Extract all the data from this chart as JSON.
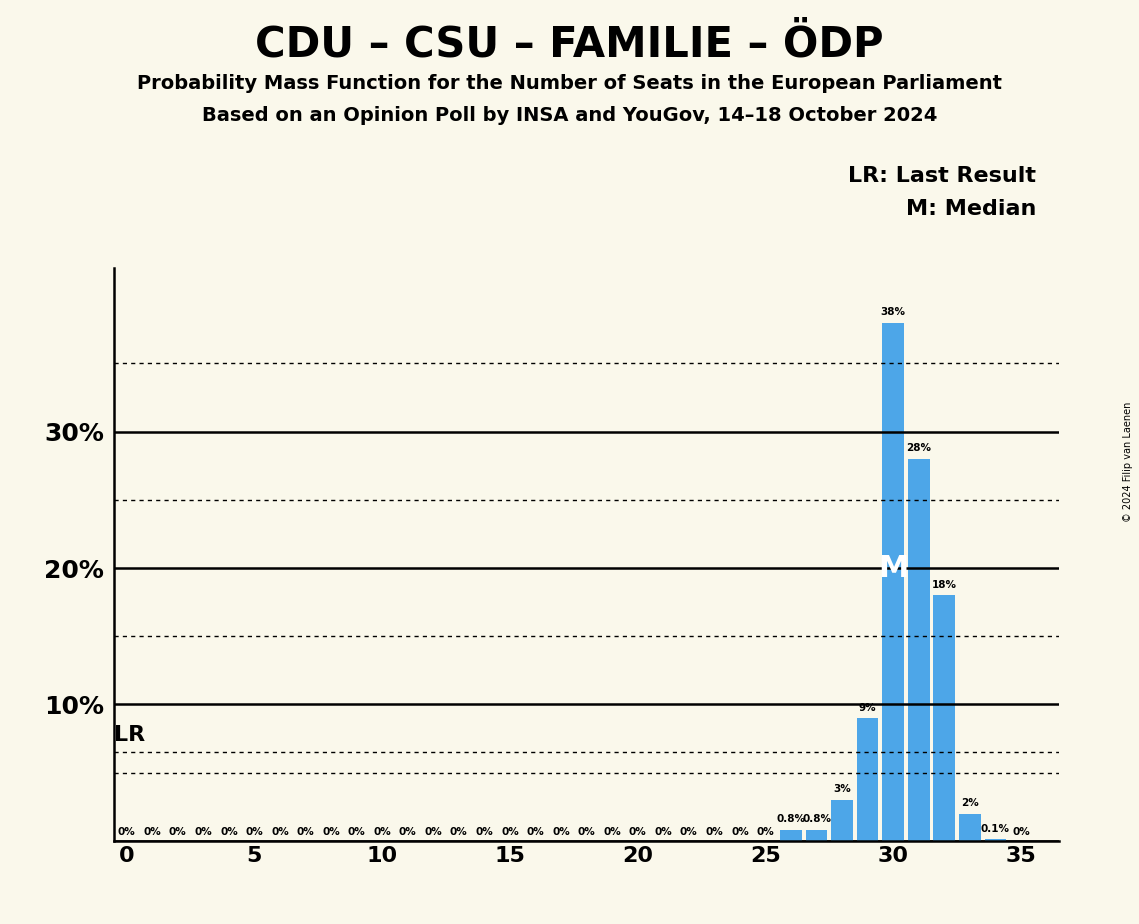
{
  "title": "CDU – CSU – FAMILIE – ÖDP",
  "subtitle1": "Probability Mass Function for the Number of Seats in the European Parliament",
  "subtitle2": "Based on an Opinion Poll by INSA and YouGov, 14–18 October 2024",
  "copyright": "© 2024 Filip van Laenen",
  "seats": [
    0,
    1,
    2,
    3,
    4,
    5,
    6,
    7,
    8,
    9,
    10,
    11,
    12,
    13,
    14,
    15,
    16,
    17,
    18,
    19,
    20,
    21,
    22,
    23,
    24,
    25,
    26,
    27,
    28,
    29,
    30,
    31,
    32,
    33,
    34,
    35
  ],
  "probs": [
    0,
    0,
    0,
    0,
    0,
    0,
    0,
    0,
    0,
    0,
    0,
    0,
    0,
    0,
    0,
    0,
    0,
    0,
    0,
    0,
    0,
    0,
    0,
    0,
    0,
    0,
    0.8,
    0.8,
    3,
    9,
    38,
    28,
    18,
    2,
    0.1,
    0
  ],
  "bar_color": "#4da6e8",
  "background_color": "#faf8eb",
  "median_seat": 30,
  "lr_level": 6.5,
  "yticks_solid": [
    0,
    10,
    20,
    30
  ],
  "yticks_dotted": [
    5,
    15,
    25,
    35
  ],
  "xlim": [
    -0.5,
    36.5
  ],
  "ylim": [
    0,
    42
  ],
  "xticks": [
    0,
    5,
    10,
    15,
    20,
    25,
    30,
    35
  ]
}
